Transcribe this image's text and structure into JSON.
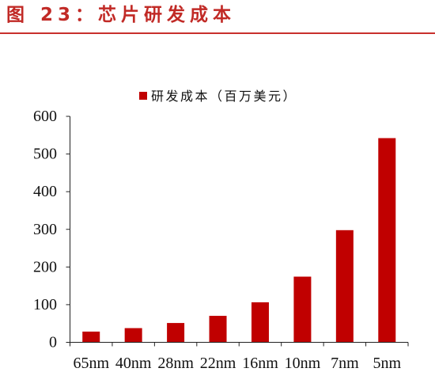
{
  "colors": {
    "caption": "#c12a26",
    "rule": "#c8302c",
    "bar": "#c00000",
    "axis": "#222222"
  },
  "chart_data": {
    "type": "bar",
    "title": "图 23：芯片研发成本",
    "categories": [
      "65nm",
      "40nm",
      "28nm",
      "22nm",
      "16nm",
      "10nm",
      "7nm",
      "5nm"
    ],
    "series": [
      {
        "name": "研发成本（百万美元）",
        "values": [
          28.5,
          37.7,
          51.3,
          70.3,
          106.3,
          174.4,
          297.8,
          542.2
        ]
      }
    ],
    "ylim": [
      0,
      600
    ],
    "yticks": [
      0,
      100,
      200,
      300,
      400,
      500,
      600
    ],
    "grid": false,
    "legend": "top-center"
  }
}
